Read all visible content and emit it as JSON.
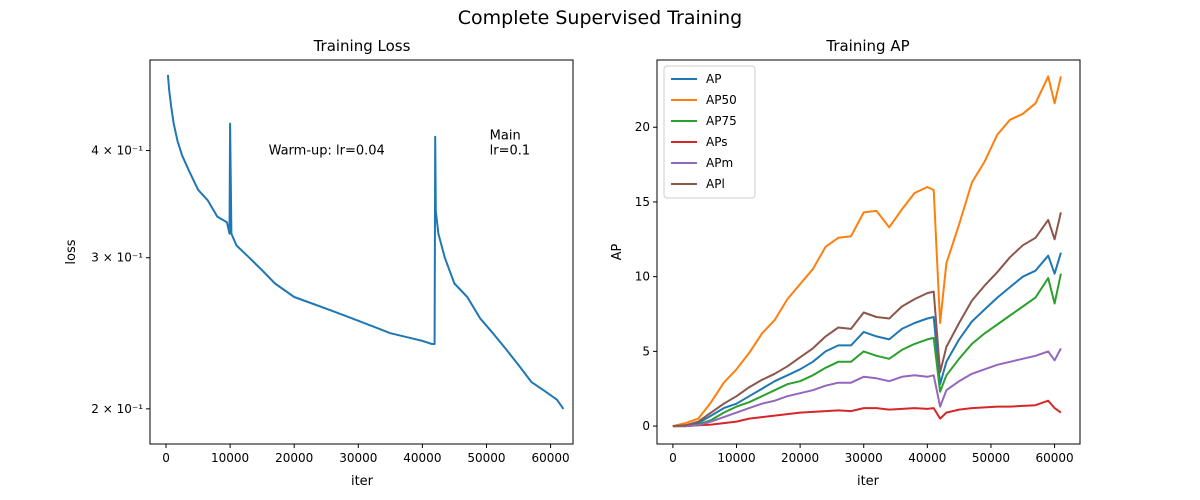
{
  "figure": {
    "suptitle": "Complete Supervised Training"
  },
  "chart_data": [
    {
      "type": "line",
      "title": "Training Loss",
      "xlabel": "iter",
      "ylabel": "loss",
      "yscale": "log",
      "xlim": [
        -2500,
        63500
      ],
      "ylim": [
        0.182,
        0.51
      ],
      "xticks": [
        0,
        10000,
        20000,
        30000,
        40000,
        50000,
        60000
      ],
      "xtick_labels": [
        "0",
        "10000",
        "20000",
        "30000",
        "40000",
        "50000",
        "60000"
      ],
      "yticks": [
        0.4,
        0.3,
        0.2
      ],
      "ytick_labels": [
        "4 × 10⁻¹",
        "3 × 10⁻¹",
        "2 × 10⁻¹"
      ],
      "grid": false,
      "color": "#1f77b4",
      "annotations": [
        {
          "x": 16000,
          "y": 0.4,
          "lines": [
            "Warm-up: lr=0.04"
          ]
        },
        {
          "x": 50500,
          "y": 0.4,
          "lines": [
            "Main",
            "lr=0.1"
          ]
        }
      ],
      "series": [
        {
          "x": [
            300,
            500,
            800,
            1200,
            1800,
            2500,
            3500,
            5000,
            6500,
            8000,
            9500,
            9900,
            10000,
            10200,
            11000,
            13000,
            15000,
            17000,
            20000,
            23000,
            26000,
            29000,
            32000,
            35000,
            38000,
            40000,
            41500,
            41900,
            42000,
            42100,
            42500,
            43500,
            45000,
            47000,
            49000,
            51000,
            53000,
            55000,
            57000,
            59000,
            61000,
            62000
          ],
          "y": [
            0.49,
            0.47,
            0.45,
            0.43,
            0.41,
            0.395,
            0.38,
            0.36,
            0.35,
            0.335,
            0.33,
            0.32,
            0.43,
            0.32,
            0.31,
            0.3,
            0.29,
            0.28,
            0.27,
            0.265,
            0.26,
            0.255,
            0.25,
            0.245,
            0.242,
            0.24,
            0.238,
            0.238,
            0.415,
            0.34,
            0.32,
            0.3,
            0.28,
            0.27,
            0.255,
            0.245,
            0.235,
            0.225,
            0.215,
            0.21,
            0.205,
            0.2
          ]
        }
      ]
    },
    {
      "type": "line",
      "title": "Training AP",
      "xlabel": "iter",
      "ylabel": "AP",
      "xlim": [
        -2500,
        64000
      ],
      "ylim": [
        -1.2,
        24.5
      ],
      "xticks": [
        0,
        10000,
        20000,
        30000,
        40000,
        50000,
        60000
      ],
      "xtick_labels": [
        "0",
        "10000",
        "20000",
        "30000",
        "40000",
        "50000",
        "60000"
      ],
      "yticks": [
        0,
        5,
        10,
        15,
        20
      ],
      "ytick_labels": [
        "0",
        "5",
        "10",
        "15",
        "20"
      ],
      "grid": false,
      "legend_position": "upper left",
      "x": [
        0,
        2000,
        4000,
        6000,
        8000,
        10000,
        12000,
        14000,
        16000,
        18000,
        20000,
        22000,
        24000,
        26000,
        28000,
        30000,
        32000,
        34000,
        36000,
        38000,
        40000,
        41000,
        42000,
        43000,
        45000,
        47000,
        49000,
        51000,
        53000,
        55000,
        57000,
        59000,
        60000,
        61000
      ],
      "series": [
        {
          "name": "AP",
          "color": "#1f77b4",
          "values": [
            0,
            0.05,
            0.2,
            0.7,
            1.2,
            1.5,
            2.0,
            2.5,
            3.0,
            3.4,
            3.8,
            4.3,
            5.0,
            5.4,
            5.4,
            6.3,
            6.0,
            5.8,
            6.5,
            6.9,
            7.2,
            7.3,
            2.8,
            4.3,
            5.8,
            7.0,
            7.8,
            8.6,
            9.3,
            10.0,
            10.4,
            11.4,
            10.2,
            11.6
          ]
        },
        {
          "name": "AP50",
          "color": "#ff7f0e",
          "values": [
            0,
            0.2,
            0.5,
            1.6,
            2.9,
            3.8,
            4.9,
            6.2,
            7.1,
            8.5,
            9.5,
            10.5,
            12.0,
            12.6,
            12.7,
            14.3,
            14.4,
            13.3,
            14.5,
            15.6,
            16.0,
            15.8,
            6.9,
            10.9,
            13.5,
            16.3,
            17.7,
            19.5,
            20.5,
            20.9,
            21.6,
            23.4,
            21.6,
            23.4
          ]
        },
        {
          "name": "AP75",
          "color": "#2ca02c",
          "values": [
            0,
            0.0,
            0.1,
            0.4,
            0.9,
            1.3,
            1.6,
            2.0,
            2.4,
            2.8,
            3.0,
            3.4,
            3.9,
            4.3,
            4.3,
            5.0,
            4.7,
            4.5,
            5.1,
            5.5,
            5.8,
            5.9,
            2.3,
            3.4,
            4.5,
            5.5,
            6.2,
            6.8,
            7.4,
            8.0,
            8.6,
            9.9,
            8.2,
            10.2
          ]
        },
        {
          "name": "APs",
          "color": "#d62728",
          "values": [
            0,
            0.0,
            0.05,
            0.1,
            0.2,
            0.3,
            0.5,
            0.6,
            0.7,
            0.8,
            0.9,
            0.95,
            1.0,
            1.05,
            1.0,
            1.2,
            1.2,
            1.1,
            1.15,
            1.2,
            1.15,
            1.2,
            0.5,
            0.9,
            1.1,
            1.2,
            1.25,
            1.3,
            1.3,
            1.35,
            1.4,
            1.7,
            1.2,
            0.9
          ]
        },
        {
          "name": "APm",
          "color": "#9467bd",
          "values": [
            0,
            0.0,
            0.05,
            0.3,
            0.6,
            0.9,
            1.2,
            1.5,
            1.7,
            2.0,
            2.2,
            2.4,
            2.7,
            2.9,
            2.9,
            3.3,
            3.2,
            3.0,
            3.3,
            3.4,
            3.3,
            3.4,
            1.3,
            2.4,
            3.0,
            3.5,
            3.8,
            4.1,
            4.3,
            4.5,
            4.7,
            5.0,
            4.4,
            5.2
          ]
        },
        {
          "name": "APl",
          "color": "#8c564b",
          "values": [
            0,
            0.05,
            0.3,
            0.9,
            1.5,
            2.0,
            2.6,
            3.1,
            3.5,
            4.0,
            4.6,
            5.2,
            6.0,
            6.6,
            6.5,
            7.6,
            7.3,
            7.2,
            8.0,
            8.5,
            8.9,
            9.0,
            3.6,
            5.3,
            6.9,
            8.4,
            9.4,
            10.3,
            11.3,
            12.1,
            12.6,
            13.8,
            12.5,
            14.3
          ]
        }
      ]
    }
  ]
}
